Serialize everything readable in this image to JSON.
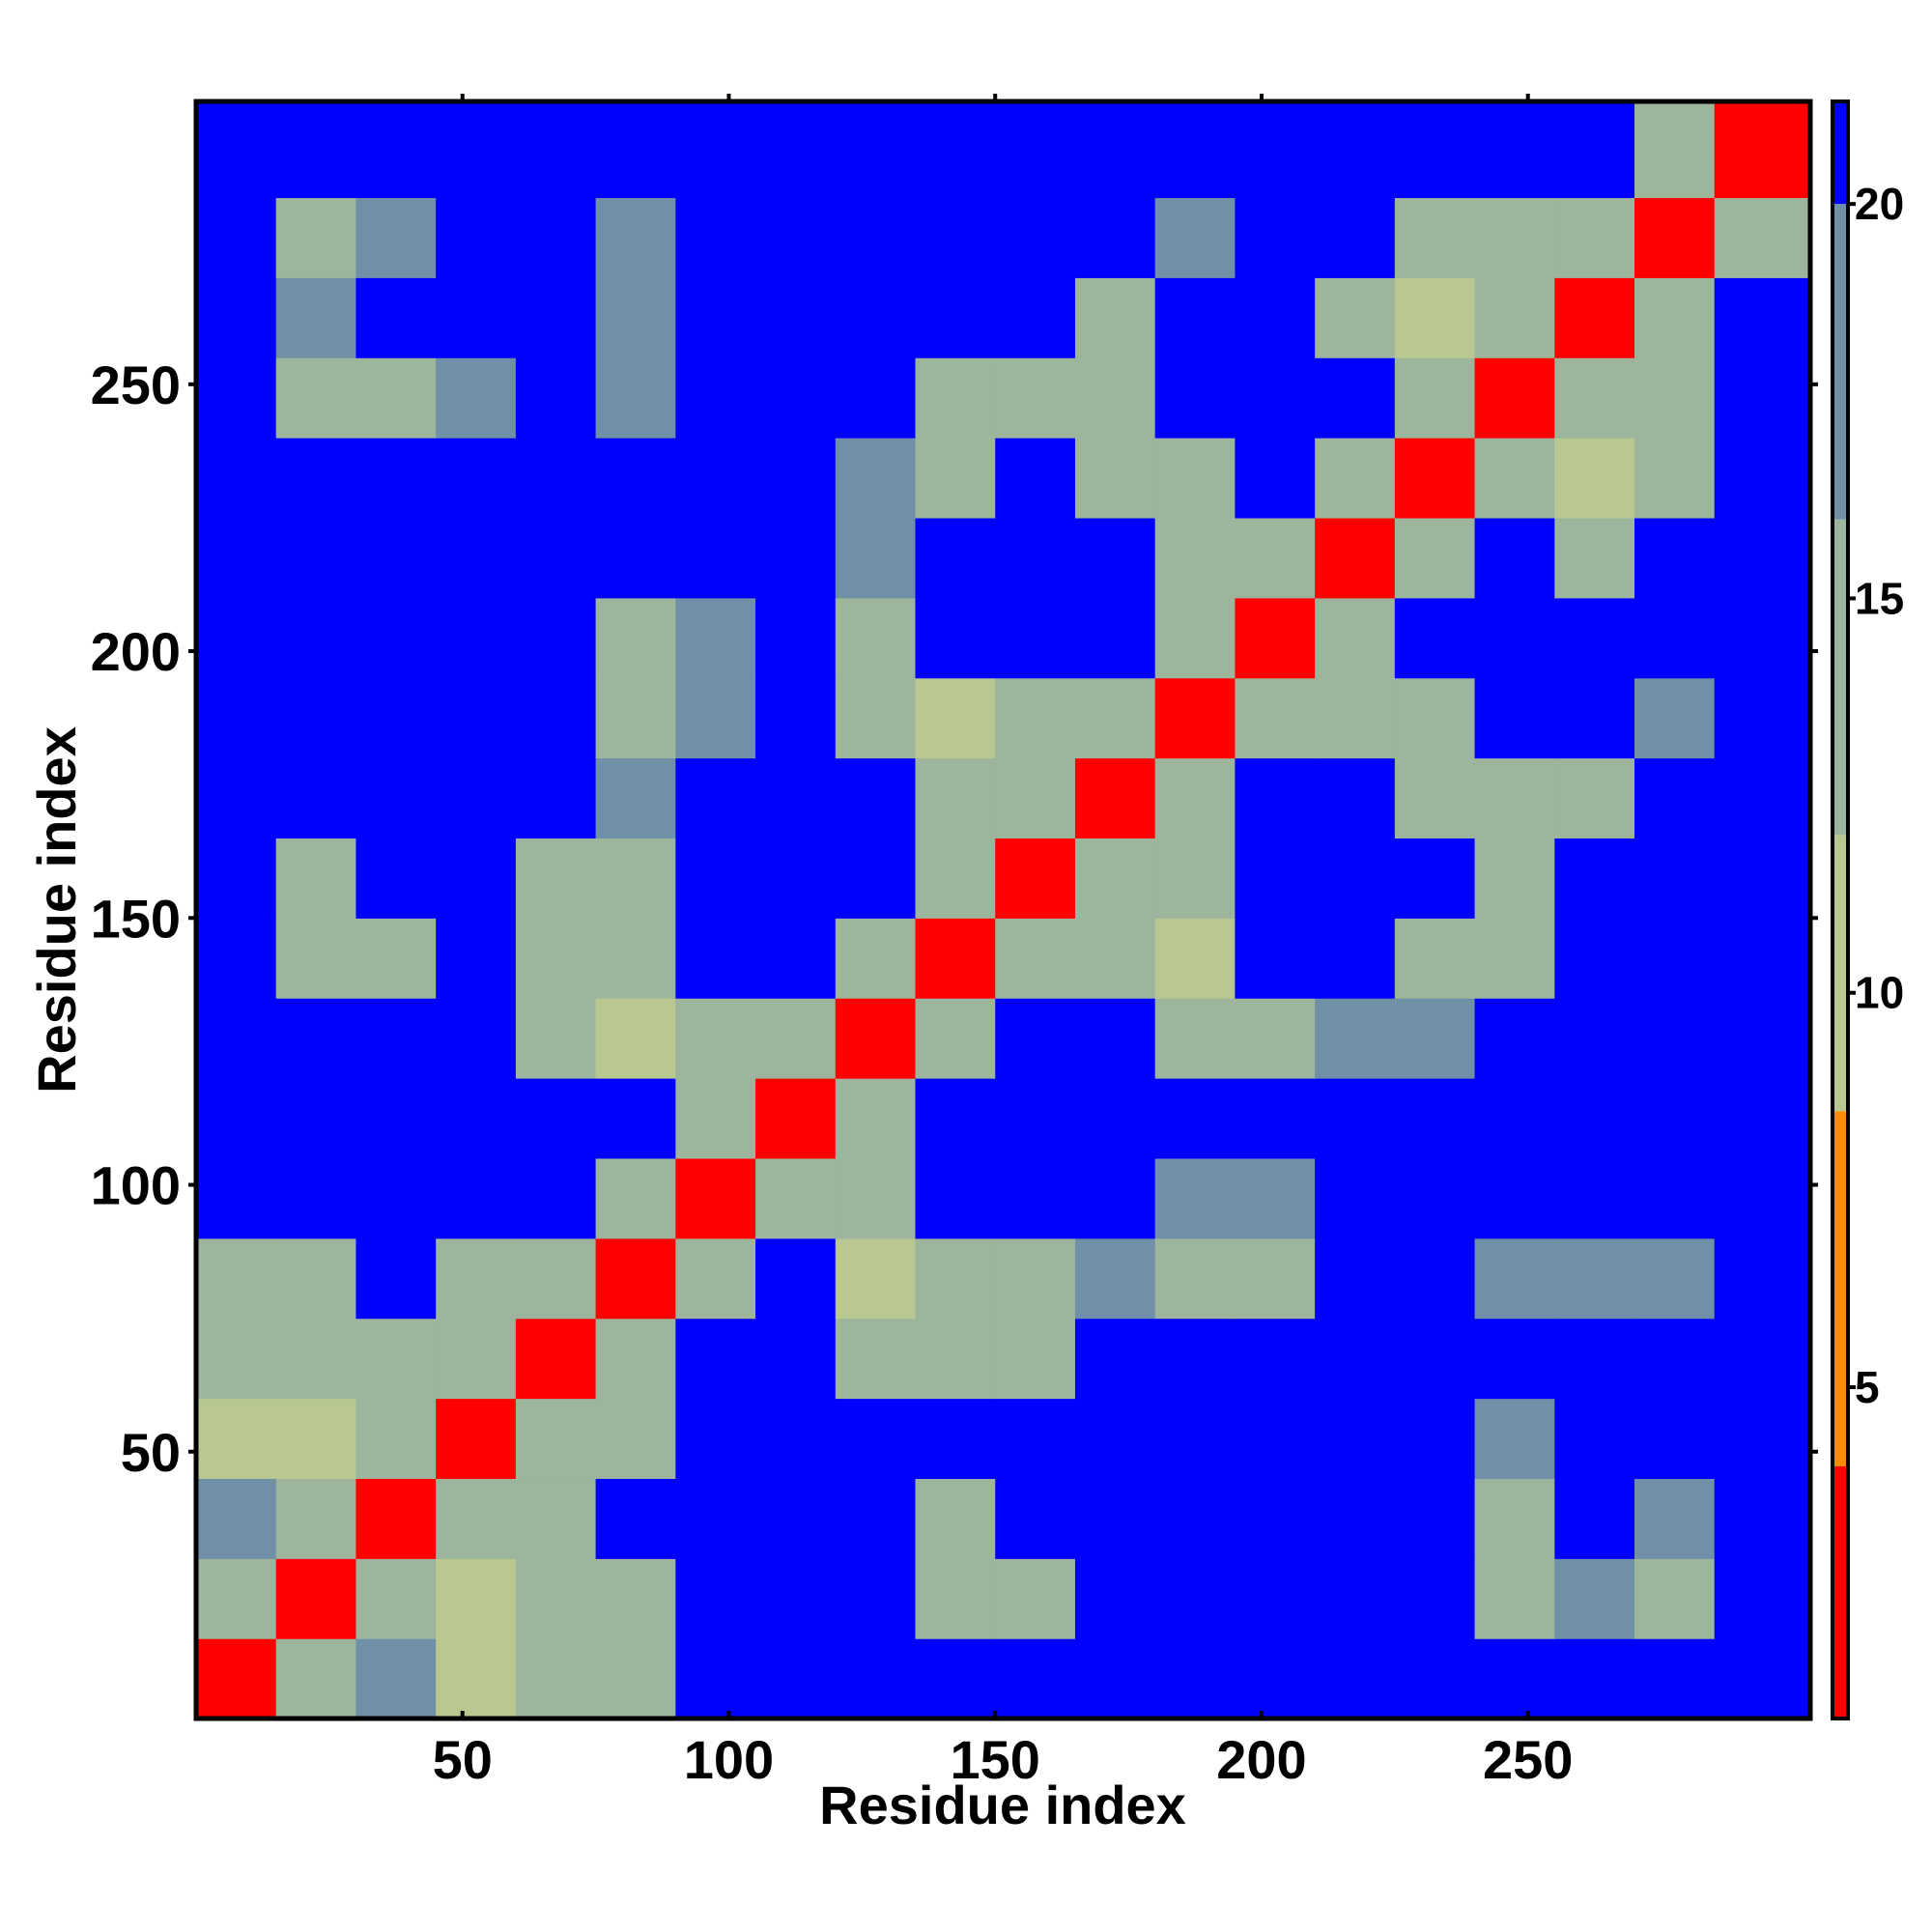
{
  "chart_data": {
    "type": "heatmap",
    "x_label": "Residue index",
    "y_label": "Residue index",
    "xlim": [
      0,
      303
    ],
    "ylim": [
      0,
      303
    ],
    "xticks": [
      50,
      100,
      150,
      200,
      250
    ],
    "yticks": [
      50,
      100,
      150,
      200,
      250
    ],
    "x_edges": [
      0,
      15,
      30,
      45,
      60,
      75,
      90,
      105,
      120,
      135,
      150,
      165,
      180,
      195,
      210,
      225,
      240,
      255,
      270,
      285,
      303
    ],
    "y_edges": [
      0,
      15,
      30,
      45,
      60,
      75,
      90,
      105,
      120,
      135,
      150,
      165,
      180,
      195,
      210,
      225,
      240,
      255,
      270,
      285,
      303
    ],
    "z": [
      [
        4,
        13,
        17,
        12,
        13,
        14,
        21,
        21,
        21,
        21,
        21,
        21,
        21,
        21,
        21,
        21,
        21,
        21,
        21,
        21
      ],
      [
        13,
        4,
        13,
        12,
        13,
        16,
        21,
        21,
        21,
        14,
        16,
        21,
        21,
        21,
        21,
        21,
        14,
        17,
        16,
        21
      ],
      [
        17,
        13,
        4,
        13,
        16,
        21,
        21,
        21,
        21,
        16,
        21,
        21,
        21,
        21,
        21,
        21,
        16,
        21,
        17,
        21
      ],
      [
        12,
        12,
        13,
        4,
        13,
        15,
        21,
        21,
        21,
        21,
        21,
        21,
        21,
        21,
        21,
        21,
        19,
        21,
        21,
        21
      ],
      [
        13,
        13,
        16,
        13,
        4,
        13,
        21,
        21,
        15,
        13,
        16,
        21,
        21,
        21,
        21,
        21,
        21,
        21,
        21,
        21
      ],
      [
        14,
        16,
        21,
        15,
        13,
        4,
        13,
        21,
        12,
        15,
        16,
        18,
        16,
        16,
        21,
        21,
        18,
        19,
        19,
        21
      ],
      [
        21,
        21,
        21,
        21,
        21,
        13,
        4,
        13,
        14,
        21,
        21,
        21,
        18,
        17,
        21,
        21,
        21,
        21,
        21,
        21
      ],
      [
        21,
        21,
        21,
        21,
        21,
        21,
        13,
        4,
        13,
        21,
        21,
        21,
        21,
        21,
        21,
        21,
        21,
        21,
        21,
        21
      ],
      [
        21,
        21,
        21,
        21,
        15,
        12,
        14,
        13,
        4,
        13,
        21,
        21,
        14,
        13,
        18,
        17,
        21,
        21,
        21,
        21
      ],
      [
        21,
        14,
        16,
        21,
        13,
        15,
        21,
        21,
        13,
        4,
        13,
        13,
        12,
        21,
        21,
        15,
        14,
        21,
        21,
        21
      ],
      [
        21,
        16,
        21,
        21,
        16,
        16,
        21,
        21,
        21,
        13,
        4,
        13,
        15,
        21,
        21,
        21,
        16,
        21,
        21,
        21
      ],
      [
        21,
        21,
        21,
        21,
        21,
        18,
        21,
        21,
        21,
        13,
        13,
        4,
        13,
        21,
        21,
        15,
        14,
        16,
        21,
        21
      ],
      [
        21,
        21,
        21,
        21,
        21,
        16,
        18,
        21,
        14,
        12,
        15,
        13,
        4,
        13,
        13,
        13,
        21,
        21,
        17,
        21
      ],
      [
        21,
        21,
        21,
        21,
        21,
        16,
        17,
        21,
        13,
        21,
        21,
        21,
        13,
        4,
        13,
        21,
        21,
        21,
        21,
        21
      ],
      [
        21,
        21,
        21,
        21,
        21,
        21,
        21,
        21,
        18,
        21,
        21,
        21,
        13,
        13,
        4,
        13,
        21,
        16,
        21,
        21
      ],
      [
        21,
        21,
        21,
        21,
        21,
        21,
        21,
        21,
        17,
        15,
        21,
        15,
        13,
        21,
        13,
        4,
        13,
        12,
        13,
        21
      ],
      [
        21,
        14,
        16,
        19,
        21,
        18,
        21,
        21,
        21,
        14,
        16,
        14,
        21,
        21,
        21,
        13,
        4,
        13,
        15,
        21
      ],
      [
        21,
        17,
        21,
        21,
        21,
        19,
        21,
        21,
        21,
        21,
        21,
        16,
        21,
        21,
        16,
        12,
        13,
        4,
        13,
        21
      ],
      [
        21,
        16,
        17,
        21,
        21,
        19,
        21,
        21,
        21,
        21,
        21,
        21,
        17,
        21,
        21,
        13,
        15,
        13,
        4,
        13
      ],
      [
        21,
        21,
        21,
        21,
        21,
        21,
        21,
        21,
        21,
        21,
        21,
        21,
        21,
        21,
        21,
        21,
        21,
        21,
        13,
        4
      ]
    ],
    "zlim": [
      0.8,
      21.3
    ],
    "zticks": [
      5,
      10,
      15,
      20
    ],
    "colorscale": [
      {
        "to": 4,
        "color": "#ff0000"
      },
      {
        "to": 8.5,
        "color": "#ff8c00"
      },
      {
        "to": 12,
        "color": "#b8c890"
      },
      {
        "to": 16,
        "color": "#9cb59c"
      },
      {
        "to": 20,
        "color": "#7090a8"
      },
      {
        "to": 21.3,
        "color": "#0000ff"
      }
    ]
  }
}
